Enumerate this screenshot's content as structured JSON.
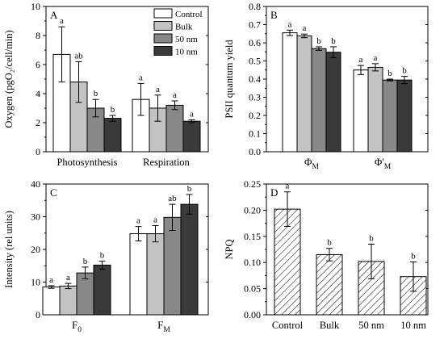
{
  "chart_data": [
    {
      "panel": "A",
      "type": "bar",
      "ylabel": "Oxygen (pgO₂/cell/min)",
      "ylim": [
        0,
        10
      ],
      "yticks": [
        0,
        2,
        4,
        6,
        8,
        10
      ],
      "categories": [
        "Photosynthesis",
        "Respiration"
      ],
      "legend_position": "top-right",
      "series": [
        {
          "name": "Control",
          "color": "#ffffff",
          "values": [
            6.7,
            3.6
          ],
          "errors": [
            1.9,
            1.1
          ],
          "labels": [
            "a",
            "a"
          ]
        },
        {
          "name": "Bulk",
          "color": "#c3c3c3",
          "values": [
            4.8,
            3.0
          ],
          "errors": [
            1.4,
            0.9
          ],
          "labels": [
            "ab",
            "a"
          ]
        },
        {
          "name": "50 nm",
          "color": "#888888",
          "values": [
            3.0,
            3.2
          ],
          "errors": [
            0.6,
            0.3
          ],
          "labels": [
            "b",
            "a"
          ]
        },
        {
          "name": "10 nm",
          "color": "#3a3a3a",
          "values": [
            2.3,
            2.1
          ],
          "errors": [
            0.2,
            0.1
          ],
          "labels": [
            "b",
            "a"
          ]
        }
      ]
    },
    {
      "panel": "B",
      "type": "bar",
      "ylabel": "PSII quantum yield",
      "ylim": [
        0,
        0.8
      ],
      "yticks": [
        "0.0",
        "0.1",
        "0.2",
        "0.3",
        "0.4",
        "0.5",
        "0.6",
        "0.7",
        "0.8"
      ],
      "categories": [
        "ΦM",
        "Φ'M"
      ],
      "category_labels": [
        {
          "main": "Φ",
          "sub": "M"
        },
        {
          "main": "Φ'",
          "sub": "M"
        }
      ],
      "series": [
        {
          "name": "Control",
          "color": "#ffffff",
          "values": [
            0.655,
            0.45
          ],
          "errors": [
            0.015,
            0.025
          ],
          "labels": [
            "a",
            "a"
          ]
        },
        {
          "name": "Bulk",
          "color": "#c3c3c3",
          "values": [
            0.638,
            0.465
          ],
          "errors": [
            0.01,
            0.02
          ],
          "labels": [
            "a",
            "a"
          ]
        },
        {
          "name": "50 nm",
          "color": "#888888",
          "values": [
            0.568,
            0.395
          ],
          "errors": [
            0.01,
            0.005
          ],
          "labels": [
            "b",
            "b"
          ]
        },
        {
          "name": "10 nm",
          "color": "#3a3a3a",
          "values": [
            0.548,
            0.395
          ],
          "errors": [
            0.03,
            0.02
          ],
          "labels": [
            "b",
            "b"
          ]
        }
      ]
    },
    {
      "panel": "C",
      "type": "bar",
      "ylabel": "Intensity (rel units)",
      "ylim": [
        0,
        40
      ],
      "yticks": [
        0,
        10,
        20,
        30,
        40
      ],
      "categories": [
        "F0",
        "FM"
      ],
      "category_labels": [
        {
          "main": "F",
          "sub": "0"
        },
        {
          "main": "F",
          "sub": "M"
        }
      ],
      "series": [
        {
          "name": "Control",
          "color": "#ffffff",
          "values": [
            8.5,
            24.8
          ],
          "errors": [
            0.4,
            2.2
          ],
          "labels": [
            "a",
            "a"
          ]
        },
        {
          "name": "Bulk",
          "color": "#c3c3c3",
          "values": [
            8.8,
            24.8
          ],
          "errors": [
            0.8,
            2.5
          ],
          "labels": [
            "a",
            "a"
          ]
        },
        {
          "name": "50 nm",
          "color": "#888888",
          "values": [
            12.8,
            29.8
          ],
          "errors": [
            1.8,
            4.0
          ],
          "labels": [
            "b",
            "ab"
          ]
        },
        {
          "name": "10 nm",
          "color": "#3a3a3a",
          "values": [
            15.2,
            33.8
          ],
          "errors": [
            1.2,
            3.0
          ],
          "labels": [
            "b",
            "b"
          ]
        }
      ]
    },
    {
      "panel": "D",
      "type": "bar",
      "ylabel": "NPQ",
      "ylim": [
        0,
        0.25
      ],
      "yticks": [
        "0.00",
        "0.05",
        "0.10",
        "0.15",
        "0.20",
        "0.25"
      ],
      "categories": [
        "Control",
        "Bulk",
        "50 nm",
        "10 nm"
      ],
      "fill": "hatched",
      "values": [
        0.202,
        0.115,
        0.102,
        0.073
      ],
      "errors": [
        0.033,
        0.012,
        0.033,
        0.028
      ],
      "labels": [
        "a",
        "b",
        "b",
        "b"
      ]
    }
  ]
}
